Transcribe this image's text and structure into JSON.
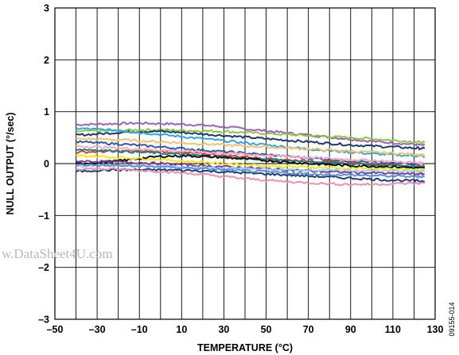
{
  "chart_data": {
    "type": "line",
    "title": "",
    "xlabel": "TEMPERATURE (°C)",
    "ylabel": "NULL OUTPUT (°/sec)",
    "xlim": [
      -50,
      130
    ],
    "ylim": [
      -3,
      3
    ],
    "x_ticks": [
      -50,
      -30,
      -10,
      10,
      30,
      50,
      70,
      90,
      110,
      130
    ],
    "x_tick_labels": [
      "–50",
      "–30",
      "–10",
      "10",
      "30",
      "50",
      "70",
      "90",
      "110",
      "130"
    ],
    "y_ticks": [
      3,
      2,
      1,
      0,
      -1,
      -2,
      -3
    ],
    "y_tick_labels": [
      "3",
      "2",
      "1",
      "0",
      "–1",
      "–2",
      "–3"
    ],
    "grid": true,
    "x": [
      -40,
      -30,
      -20,
      -10,
      0,
      10,
      20,
      30,
      40,
      50,
      60,
      70,
      80,
      90,
      100,
      110,
      120,
      125
    ],
    "series": [
      {
        "color": "#a05fc0",
        "values": [
          0.75,
          0.76,
          0.77,
          0.78,
          0.77,
          0.76,
          0.74,
          0.71,
          0.67,
          0.63,
          0.59,
          0.55,
          0.51,
          0.47,
          0.43,
          0.4,
          0.37,
          0.35
        ]
      },
      {
        "color": "#8dc63f",
        "values": [
          0.62,
          0.63,
          0.64,
          0.65,
          0.65,
          0.64,
          0.63,
          0.62,
          0.6,
          0.58,
          0.56,
          0.54,
          0.52,
          0.5,
          0.48,
          0.45,
          0.42,
          0.4
        ]
      },
      {
        "color": "#1b3a6b",
        "values": [
          0.55,
          0.57,
          0.6,
          0.62,
          0.62,
          0.6,
          0.57,
          0.54,
          0.51,
          0.48,
          0.45,
          0.42,
          0.39,
          0.36,
          0.34,
          0.32,
          0.3,
          0.29
        ]
      },
      {
        "color": "#29abe2",
        "values": [
          0.68,
          0.66,
          0.64,
          0.6,
          0.56,
          0.52,
          0.48,
          0.44,
          0.4,
          0.36,
          0.32,
          0.28,
          0.25,
          0.22,
          0.19,
          0.17,
          0.15,
          0.14
        ]
      },
      {
        "color": "#f7c16b",
        "values": [
          0.48,
          0.47,
          0.46,
          0.44,
          0.42,
          0.4,
          0.38,
          0.36,
          0.34,
          0.32,
          0.3,
          0.28,
          0.26,
          0.24,
          0.22,
          0.2,
          0.18,
          0.17
        ]
      },
      {
        "color": "#2b5aa8",
        "values": [
          0.42,
          0.4,
          0.38,
          0.35,
          0.32,
          0.29,
          0.26,
          0.23,
          0.2,
          0.17,
          0.14,
          0.11,
          0.08,
          0.05,
          0.03,
          0.01,
          0.0,
          -0.01
        ]
      },
      {
        "color": "#e53935",
        "values": [
          0.22,
          0.23,
          0.24,
          0.24,
          0.23,
          0.21,
          0.19,
          0.16,
          0.13,
          0.1,
          0.07,
          0.05,
          0.03,
          0.01,
          -0.01,
          -0.03,
          -0.05,
          -0.06
        ]
      },
      {
        "color": "#f7a8c4",
        "values": [
          0.34,
          0.32,
          0.3,
          0.28,
          0.26,
          0.24,
          0.22,
          0.2,
          0.18,
          0.16,
          0.14,
          0.12,
          0.1,
          0.08,
          0.06,
          0.04,
          0.02,
          0.01
        ]
      },
      {
        "color": "#17877b",
        "values": [
          0.28,
          0.26,
          0.24,
          0.22,
          0.2,
          0.18,
          0.15,
          0.12,
          0.1,
          0.08,
          0.06,
          0.04,
          0.02,
          0.0,
          -0.02,
          -0.04,
          -0.06,
          -0.07
        ]
      },
      {
        "color": "#111111",
        "values": [
          0.0,
          0.02,
          0.05,
          0.1,
          0.14,
          0.15,
          0.14,
          0.12,
          0.09,
          0.06,
          0.03,
          0.0,
          -0.02,
          -0.04,
          -0.05,
          -0.06,
          -0.08,
          -0.09
        ]
      },
      {
        "color": "#f5e51b",
        "values": [
          0.15,
          0.14,
          0.12,
          0.1,
          0.08,
          0.05,
          0.03,
          0.0,
          -0.02,
          -0.04,
          -0.06,
          -0.07,
          -0.08,
          -0.09,
          -0.1,
          -0.11,
          -0.12,
          -0.12
        ]
      },
      {
        "color": "#7b3f98",
        "values": [
          0.05,
          0.04,
          0.03,
          0.02,
          0.0,
          -0.02,
          -0.04,
          -0.06,
          -0.08,
          -0.1,
          -0.12,
          -0.14,
          -0.16,
          -0.17,
          -0.18,
          -0.19,
          -0.2,
          -0.2
        ]
      },
      {
        "color": "#9fd2f0",
        "values": [
          -0.05,
          -0.04,
          -0.04,
          -0.05,
          -0.06,
          -0.07,
          -0.08,
          -0.09,
          -0.1,
          -0.11,
          -0.12,
          -0.12,
          -0.13,
          -0.13,
          -0.14,
          -0.14,
          -0.15,
          -0.15
        ]
      },
      {
        "color": "#1f3f7a",
        "values": [
          -0.15,
          -0.13,
          -0.12,
          -0.12,
          -0.12,
          -0.13,
          -0.14,
          -0.16,
          -0.18,
          -0.2,
          -0.22,
          -0.24,
          -0.26,
          -0.28,
          -0.3,
          -0.32,
          -0.33,
          -0.34
        ]
      },
      {
        "color": "#ee90b5",
        "values": [
          -0.1,
          -0.1,
          -0.11,
          -0.13,
          -0.15,
          -0.18,
          -0.21,
          -0.25,
          -0.29,
          -0.32,
          -0.35,
          -0.37,
          -0.39,
          -0.4,
          -0.4,
          -0.39,
          -0.38,
          -0.38
        ]
      },
      {
        "color": "#5b8fd6",
        "values": [
          -0.02,
          -0.03,
          -0.04,
          -0.05,
          -0.06,
          -0.08,
          -0.1,
          -0.12,
          -0.14,
          -0.16,
          -0.18,
          -0.2,
          -0.21,
          -0.22,
          -0.23,
          -0.24,
          -0.25,
          -0.25
        ]
      }
    ]
  },
  "watermark": "w.DataSheet4U.com",
  "figure_id": "09155-014"
}
